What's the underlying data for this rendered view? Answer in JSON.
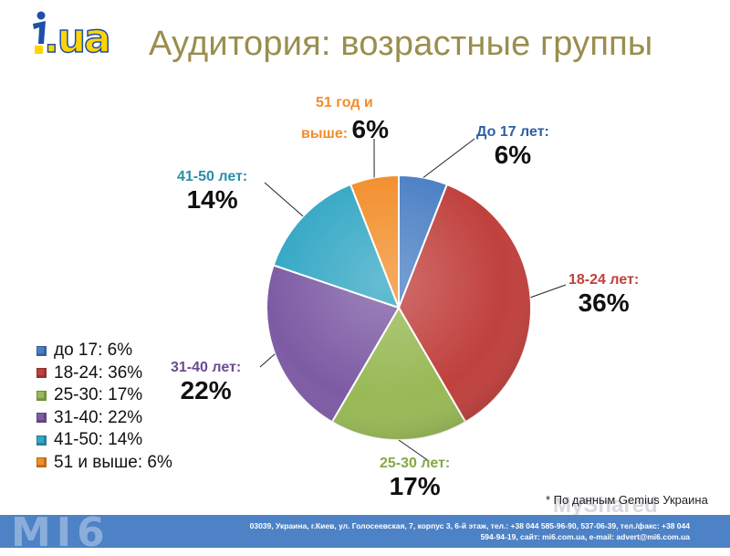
{
  "header": {
    "logo_text": ".ua",
    "title": "Аудитория: возрастные группы"
  },
  "chart_data": {
    "type": "pie",
    "title": "Аудитория: возрастные группы",
    "slices": [
      {
        "label": "До 17 лет:",
        "value": 6,
        "pct_text": "6%",
        "legend": "до 17: 6%",
        "color": "#4A7FC4"
      },
      {
        "label": "18-24 лет:",
        "value": 36,
        "pct_text": "36%",
        "legend": "18-24: 36%",
        "color": "#C0403D"
      },
      {
        "label": "25-30 лет:",
        "value": 17,
        "pct_text": "17%",
        "legend": "25-30: 17%",
        "color": "#98B955"
      },
      {
        "label": "31-40 лет:",
        "value": 22,
        "pct_text": "22%",
        "legend": "31-40: 22%",
        "color": "#7D5BA4"
      },
      {
        "label": "41-50 лет:",
        "value": 14,
        "pct_text": "14%",
        "legend": "41-50: 14%",
        "color": "#33A7C4"
      },
      {
        "label": "51 год и выше:",
        "label_line1": "51 год и",
        "label_line2": "выше:",
        "value": 6,
        "pct_text": "6%",
        "legend": "51 и выше: 6%",
        "color": "#F28D28"
      }
    ],
    "legend_position": "left"
  },
  "source_note": "* По данным Gemius Украина",
  "watermark": "MyShared",
  "footer": {
    "logo": "MI6",
    "line1": "03039, Украина, г.Киев, ул. Голосеевская, 7, корпус 3, 6-й этаж, тел.: +38 044 585-96-90, 537-06-39, тел./факс: +38 044",
    "line2": "594-94-19, сайт: mi6.com.ua, e-mail: advert@mi6.com.ua"
  }
}
